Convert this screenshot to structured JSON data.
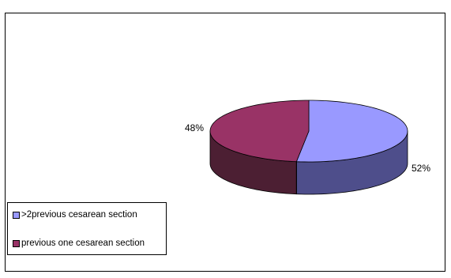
{
  "chart_data": {
    "type": "pie",
    "style": "3d",
    "title": "",
    "slices": [
      {
        "label": ">2previous cesarean section",
        "value": 52,
        "display": "52%",
        "color": "#9999ff",
        "side_color": "#4e4e8b"
      },
      {
        "label": "previous one cesarean section",
        "value": 48,
        "display": "48%",
        "color": "#993366",
        "side_color": "#4c1f33"
      }
    ],
    "legend_position": "bottom-left"
  }
}
